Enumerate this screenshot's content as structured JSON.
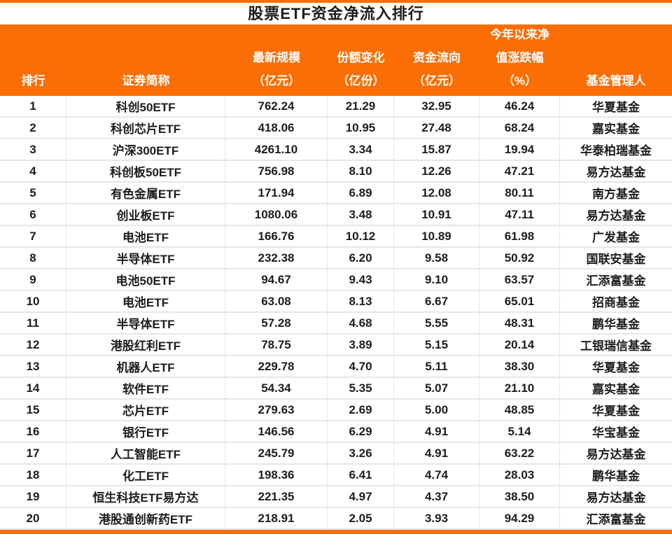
{
  "title": "股票ETF资金净流入排行",
  "colors": {
    "accent": "#fa6e05",
    "header_text": "#ffffff",
    "row_border": "#e6e6e6",
    "text": "#1d1d1d",
    "background": "#ffffff"
  },
  "chart_data": {
    "type": "table",
    "title": "股票ETF资金净流入排行",
    "columns": [
      {
        "key": "rank",
        "label_lines": [
          "排行"
        ]
      },
      {
        "key": "name",
        "label_lines": [
          "证券简称"
        ]
      },
      {
        "key": "scale",
        "label_lines": [
          "最新规模",
          "（亿元）"
        ]
      },
      {
        "key": "share-change",
        "label_lines": [
          "份额变化",
          "（亿份）"
        ]
      },
      {
        "key": "flow",
        "label_lines": [
          "资金流向",
          "（亿元）"
        ]
      },
      {
        "key": "ytd-nav-change",
        "label_lines": [
          "今年以来净",
          "值涨跌幅",
          "（%）"
        ]
      },
      {
        "key": "manager",
        "label_lines": [
          "基金管理人"
        ]
      }
    ],
    "rows": [
      [
        "1",
        "科创50ETF",
        "762.24",
        "21.29",
        "32.95",
        "46.24",
        "华夏基金"
      ],
      [
        "2",
        "科创芯片ETF",
        "418.06",
        "10.95",
        "27.48",
        "68.24",
        "嘉实基金"
      ],
      [
        "3",
        "沪深300ETF",
        "4261.10",
        "3.34",
        "15.87",
        "19.94",
        "华泰柏瑞基金"
      ],
      [
        "4",
        "科创板50ETF",
        "756.98",
        "8.10",
        "12.26",
        "47.21",
        "易方达基金"
      ],
      [
        "5",
        "有色金属ETF",
        "171.94",
        "6.89",
        "12.08",
        "80.11",
        "南方基金"
      ],
      [
        "6",
        "创业板ETF",
        "1080.06",
        "3.48",
        "10.91",
        "47.11",
        "易方达基金"
      ],
      [
        "7",
        "电池ETF",
        "166.76",
        "10.12",
        "10.89",
        "61.98",
        "广发基金"
      ],
      [
        "8",
        "半导体ETF",
        "232.38",
        "6.20",
        "9.58",
        "50.92",
        "国联安基金"
      ],
      [
        "9",
        "电池50ETF",
        "94.67",
        "9.43",
        "9.10",
        "63.57",
        "汇添富基金"
      ],
      [
        "10",
        "电池ETF",
        "63.08",
        "8.13",
        "6.67",
        "65.01",
        "招商基金"
      ],
      [
        "11",
        "半导体ETF",
        "57.28",
        "4.68",
        "5.55",
        "48.31",
        "鹏华基金"
      ],
      [
        "12",
        "港股红利ETF",
        "78.75",
        "3.89",
        "5.15",
        "20.14",
        "工银瑞信基金"
      ],
      [
        "13",
        "机器人ETF",
        "229.78",
        "4.70",
        "5.11",
        "38.30",
        "华夏基金"
      ],
      [
        "14",
        "软件ETF",
        "54.34",
        "5.35",
        "5.07",
        "21.10",
        "嘉实基金"
      ],
      [
        "15",
        "芯片ETF",
        "279.63",
        "2.69",
        "5.00",
        "48.85",
        "华夏基金"
      ],
      [
        "16",
        "银行ETF",
        "146.56",
        "6.29",
        "4.91",
        "5.14",
        "华宝基金"
      ],
      [
        "17",
        "人工智能ETF",
        "245.79",
        "3.26",
        "4.91",
        "63.22",
        "易方达基金"
      ],
      [
        "18",
        "化工ETF",
        "198.36",
        "6.41",
        "4.74",
        "28.03",
        "鹏华基金"
      ],
      [
        "19",
        "恒生科技ETF易方达",
        "221.35",
        "4.97",
        "4.37",
        "38.50",
        "易方达基金"
      ],
      [
        "20",
        "港股通创新药ETF",
        "218.91",
        "2.05",
        "3.93",
        "94.29",
        "汇添富基金"
      ]
    ]
  }
}
